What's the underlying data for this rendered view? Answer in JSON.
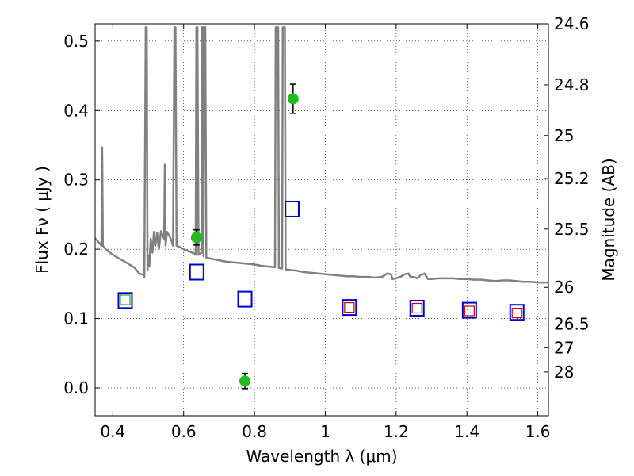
{
  "chart_data": {
    "type": "scatter",
    "xlabel": "Wavelength  λ (μm)",
    "ylabel": "Flux  Fν ( μJy )",
    "ylabel_right": "Magnitude (AB)",
    "xlim": [
      0.35,
      1.63
    ],
    "ylim": [
      -0.04,
      0.525
    ],
    "grid": true,
    "x_ticks": [
      0.4,
      0.6,
      0.8,
      1.0,
      1.2,
      1.4,
      1.6
    ],
    "x_tick_labels": [
      "0.4",
      "0.6",
      "0.8",
      "1",
      "1.2",
      "1.4",
      "1.6"
    ],
    "y_ticks": [
      0.0,
      0.1,
      0.2,
      0.3,
      0.4,
      0.5
    ],
    "y_tick_labels": [
      "0.0",
      "0.1",
      "0.2",
      "0.3",
      "0.4",
      "0.5"
    ],
    "right_ticks": [
      {
        "flux": 0.525,
        "label": "24.6"
      },
      {
        "flux": 0.437,
        "label": "24.8"
      },
      {
        "flux": 0.364,
        "label": "25"
      },
      {
        "flux": 0.302,
        "label": "25.2"
      },
      {
        "flux": 0.229,
        "label": "25.5"
      },
      {
        "flux": 0.145,
        "label": "26"
      },
      {
        "flux": 0.092,
        "label": "26.5"
      },
      {
        "flux": 0.058,
        "label": "27"
      },
      {
        "flux": 0.023,
        "label": "28"
      }
    ],
    "colors": {
      "model": "#808080",
      "observed": "#22bb22",
      "model_box": "#0000cc",
      "red_box": "#cc0000",
      "green_box": "#22aa22",
      "errorbar": "#000000"
    },
    "series": [
      {
        "kind": "line",
        "points": [
          [
            0.35,
            0.216
          ],
          [
            0.36,
            0.21
          ],
          [
            0.368,
            0.205
          ],
          [
            0.37,
            0.347
          ],
          [
            0.372,
            0.205
          ],
          [
            0.38,
            0.2
          ],
          [
            0.4,
            0.192
          ],
          [
            0.42,
            0.186
          ],
          [
            0.44,
            0.18
          ],
          [
            0.46,
            0.174
          ],
          [
            0.475,
            0.165
          ],
          [
            0.486,
            0.163
          ],
          [
            0.489,
            0.16
          ],
          [
            0.493,
            0.52
          ],
          [
            0.496,
            0.52
          ],
          [
            0.498,
            0.17
          ],
          [
            0.5,
            0.19
          ],
          [
            0.503,
            0.175
          ],
          [
            0.507,
            0.215
          ],
          [
            0.512,
            0.195
          ],
          [
            0.516,
            0.225
          ],
          [
            0.52,
            0.205
          ],
          [
            0.525,
            0.224
          ],
          [
            0.53,
            0.2
          ],
          [
            0.536,
            0.226
          ],
          [
            0.542,
            0.218
          ],
          [
            0.545,
            0.215
          ],
          [
            0.547,
            0.322
          ],
          [
            0.549,
            0.205
          ],
          [
            0.553,
            0.225
          ],
          [
            0.56,
            0.219
          ],
          [
            0.566,
            0.212
          ],
          [
            0.57,
            0.205
          ],
          [
            0.574,
            0.52
          ],
          [
            0.577,
            0.52
          ],
          [
            0.58,
            0.205
          ],
          [
            0.59,
            0.203
          ],
          [
            0.6,
            0.2
          ],
          [
            0.61,
            0.198
          ],
          [
            0.62,
            0.196
          ],
          [
            0.63,
            0.194
          ],
          [
            0.634,
            0.192
          ],
          [
            0.636,
            0.52
          ],
          [
            0.639,
            0.52
          ],
          [
            0.642,
            0.192
          ],
          [
            0.65,
            0.195
          ],
          [
            0.652,
            0.52
          ],
          [
            0.654,
            0.52
          ],
          [
            0.656,
            0.19
          ],
          [
            0.658,
            0.52
          ],
          [
            0.661,
            0.52
          ],
          [
            0.664,
            0.188
          ],
          [
            0.68,
            0.186
          ],
          [
            0.7,
            0.184
          ],
          [
            0.72,
            0.182
          ],
          [
            0.74,
            0.181
          ],
          [
            0.76,
            0.18
          ],
          [
            0.78,
            0.179
          ],
          [
            0.8,
            0.178
          ],
          [
            0.82,
            0.176
          ],
          [
            0.84,
            0.175
          ],
          [
            0.858,
            0.174
          ],
          [
            0.86,
            0.52
          ],
          [
            0.867,
            0.52
          ],
          [
            0.869,
            0.173
          ],
          [
            0.878,
            0.172
          ],
          [
            0.88,
            0.52
          ],
          [
            0.886,
            0.52
          ],
          [
            0.888,
            0.171
          ],
          [
            0.9,
            0.17
          ],
          [
            0.92,
            0.169
          ],
          [
            0.94,
            0.167
          ],
          [
            0.96,
            0.166
          ],
          [
            0.98,
            0.165
          ],
          [
            1.0,
            0.164
          ],
          [
            1.02,
            0.163
          ],
          [
            1.04,
            0.162
          ],
          [
            1.06,
            0.161
          ],
          [
            1.08,
            0.161
          ],
          [
            1.1,
            0.16
          ],
          [
            1.12,
            0.16
          ],
          [
            1.14,
            0.159
          ],
          [
            1.16,
            0.16
          ],
          [
            1.175,
            0.165
          ],
          [
            1.185,
            0.164
          ],
          [
            1.19,
            0.157
          ],
          [
            1.2,
            0.158
          ],
          [
            1.215,
            0.161
          ],
          [
            1.225,
            0.164
          ],
          [
            1.235,
            0.165
          ],
          [
            1.24,
            0.16
          ],
          [
            1.25,
            0.16
          ],
          [
            1.26,
            0.158
          ],
          [
            1.27,
            0.163
          ],
          [
            1.28,
            0.165
          ],
          [
            1.29,
            0.157
          ],
          [
            1.3,
            0.157
          ],
          [
            1.32,
            0.158
          ],
          [
            1.34,
            0.158
          ],
          [
            1.36,
            0.158
          ],
          [
            1.38,
            0.157
          ],
          [
            1.4,
            0.157
          ],
          [
            1.42,
            0.156
          ],
          [
            1.44,
            0.156
          ],
          [
            1.46,
            0.155
          ],
          [
            1.48,
            0.154
          ],
          [
            1.5,
            0.155
          ],
          [
            1.52,
            0.155
          ],
          [
            1.54,
            0.154
          ],
          [
            1.56,
            0.153
          ],
          [
            1.58,
            0.153
          ],
          [
            1.6,
            0.152
          ],
          [
            1.63,
            0.152
          ]
        ]
      },
      {
        "kind": "errorbar",
        "points": [
          {
            "x": 0.636,
            "y": 0.217,
            "yerr": 0.011
          },
          {
            "x": 0.773,
            "y": 0.01,
            "yerr": 0.011
          },
          {
            "x": 0.909,
            "y": 0.417,
            "yerr": 0.021
          }
        ]
      },
      {
        "kind": "model_box",
        "points": [
          {
            "x": 0.435,
            "y": 0.126
          },
          {
            "x": 0.637,
            "y": 0.167
          },
          {
            "x": 0.773,
            "y": 0.128
          },
          {
            "x": 0.906,
            "y": 0.258
          },
          {
            "x": 1.068,
            "y": 0.116
          },
          {
            "x": 1.259,
            "y": 0.115
          },
          {
            "x": 1.407,
            "y": 0.112
          },
          {
            "x": 1.541,
            "y": 0.109
          }
        ]
      },
      {
        "kind": "upper_limit_box",
        "color_key": "red_box",
        "points": [
          {
            "x": 1.068,
            "y": 0.116
          },
          {
            "x": 1.259,
            "y": 0.115
          },
          {
            "x": 1.407,
            "y": 0.111
          },
          {
            "x": 1.541,
            "y": 0.108
          }
        ]
      },
      {
        "kind": "upper_limit_box",
        "color_key": "green_box",
        "points": [
          {
            "x": 0.435,
            "y": 0.127
          }
        ]
      }
    ]
  }
}
